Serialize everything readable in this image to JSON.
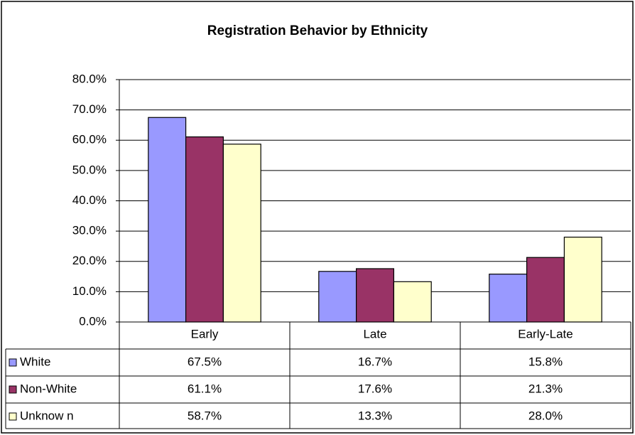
{
  "chart_data": {
    "type": "bar",
    "title": "Registration Behavior by Ethnicity",
    "categories": [
      "Early",
      "Late",
      "Early-Late"
    ],
    "series": [
      {
        "name": "White",
        "color": "#9999ff",
        "values": [
          67.5,
          16.7,
          15.8
        ],
        "value_labels": [
          "67.5%",
          "16.7%",
          "15.8%"
        ]
      },
      {
        "name": "Non-White",
        "color": "#993366",
        "values": [
          61.1,
          17.6,
          21.3
        ],
        "value_labels": [
          "61.1%",
          "17.6%",
          "21.3%"
        ]
      },
      {
        "name": "Unknow n",
        "color": "#ffffcc",
        "values": [
          58.7,
          13.3,
          28.0
        ],
        "value_labels": [
          "58.7%",
          "13.3%",
          "28.0%"
        ]
      }
    ],
    "ylim": [
      0,
      80
    ],
    "yticks": [
      {
        "value": 0,
        "label": "0.0%"
      },
      {
        "value": 10,
        "label": "10.0%"
      },
      {
        "value": 20,
        "label": "20.0%"
      },
      {
        "value": 30,
        "label": "30.0%"
      },
      {
        "value": 40,
        "label": "40.0%"
      },
      {
        "value": 50,
        "label": "50.0%"
      },
      {
        "value": 60,
        "label": "60.0%"
      },
      {
        "value": 70,
        "label": "70.0%"
      },
      {
        "value": 80,
        "label": "80.0%"
      }
    ],
    "grid": true
  }
}
